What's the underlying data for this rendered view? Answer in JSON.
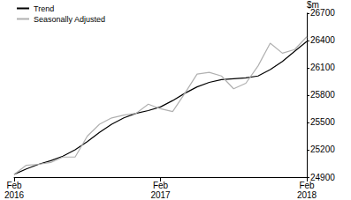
{
  "chart_data": {
    "type": "line",
    "y_label": "$m",
    "categories": [
      "Feb\n2016",
      null,
      null,
      null,
      null,
      null,
      null,
      null,
      null,
      null,
      null,
      null,
      "Feb\n2017",
      null,
      null,
      null,
      null,
      null,
      null,
      null,
      null,
      null,
      null,
      null,
      "Feb\n2018"
    ],
    "series": [
      {
        "name": "Trend",
        "color": "#000000",
        "values": [
          24930,
          24990,
          25040,
          25080,
          25130,
          25200,
          25290,
          25390,
          25480,
          25550,
          25600,
          25630,
          25670,
          25740,
          25820,
          25890,
          25940,
          25970,
          25980,
          25990,
          26010,
          26080,
          26170,
          26280,
          26390
        ]
      },
      {
        "name": "Seasonally Adjusted",
        "color": "#b0b0b0",
        "values": [
          24930,
          25030,
          25040,
          25060,
          25120,
          25120,
          25350,
          25480,
          25550,
          25580,
          25600,
          25700,
          25650,
          25620,
          25820,
          26030,
          26050,
          26010,
          25870,
          25930,
          26120,
          26370,
          26260,
          26300,
          26440
        ]
      }
    ],
    "ylim": [
      24900,
      26700
    ],
    "yticks": [
      24900,
      25200,
      25500,
      25800,
      26100,
      26400,
      26700
    ],
    "grid": false,
    "legend": "top-left"
  }
}
